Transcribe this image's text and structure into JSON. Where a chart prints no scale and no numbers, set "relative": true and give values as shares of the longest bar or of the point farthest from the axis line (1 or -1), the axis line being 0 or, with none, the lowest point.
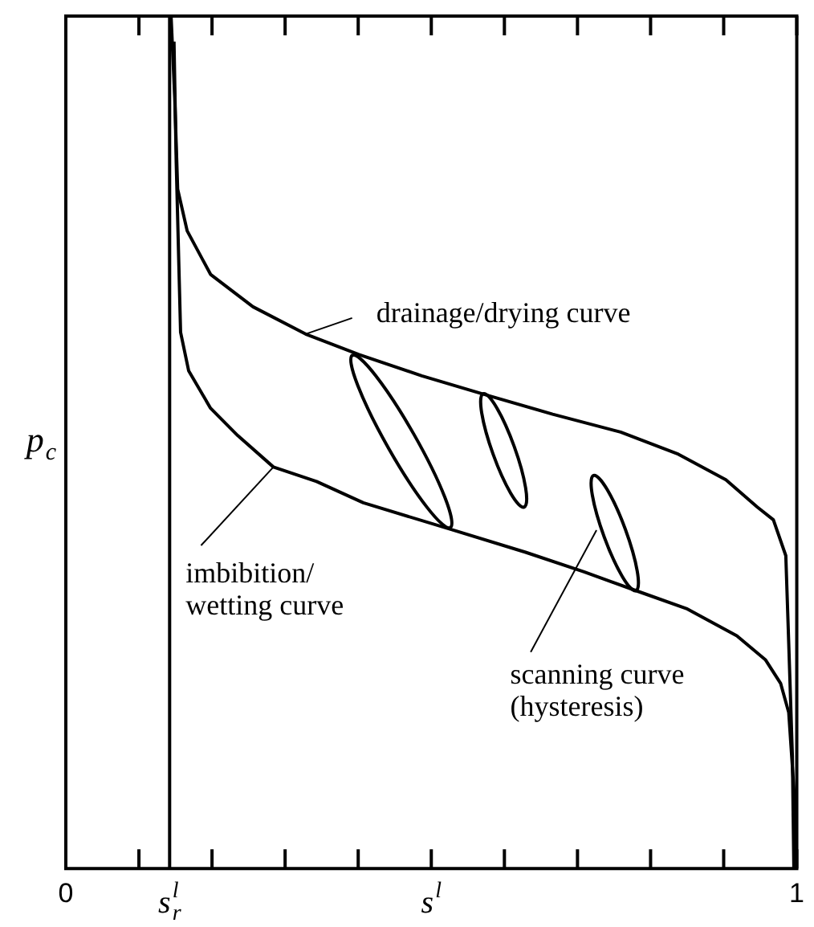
{
  "chart_data": {
    "type": "line",
    "relative": true,
    "marker": "none",
    "xlabel": "s$^{l}$",
    "ylabel": "p$_{c}$",
    "xlim": [
      0,
      1
    ],
    "xticks": [
      0,
      {
        "value": 0.1,
        "label": null
      },
      {
        "value": 0.2,
        "label": null
      },
      {
        "value": 0.3,
        "label": null
      },
      {
        "value": 0.4,
        "label": null
      },
      {
        "value": 0.5,
        "label": null
      },
      {
        "value": 0.6,
        "label": null
      },
      {
        "value": 0.7,
        "label": null
      },
      {
        "value": 0.8,
        "label": null
      },
      {
        "value": 0.9,
        "label": null
      },
      1
    ],
    "ref_lines": [
      {
        "axis": "x",
        "value": 0.142,
        "label": "s$^{l}$$_{r}$",
        "color": "#000000"
      }
    ],
    "series": [
      {
        "color": "#000000",
        "x": [
          0.144,
          0.149,
          0.153,
          0.166,
          0.198,
          0.256,
          0.328,
          0.401,
          0.487,
          0.573,
          0.666,
          0.759,
          0.838,
          0.903,
          0.946,
          0.968,
          0.985,
          0.989,
          0.994,
          0.996
        ],
        "values": [
          1.0,
          0.904,
          0.797,
          0.748,
          0.697,
          0.659,
          0.627,
          0.603,
          0.578,
          0.556,
          0.533,
          0.512,
          0.486,
          0.456,
          0.424,
          0.409,
          0.367,
          0.264,
          0.132,
          0
        ]
      },
      {
        "color": "#000000",
        "x": [
          0.148,
          0.151,
          0.157,
          0.168,
          0.198,
          0.235,
          0.284,
          0.343,
          0.407,
          0.53,
          0.629,
          0.709,
          0.78,
          0.849,
          0.918,
          0.957,
          0.978,
          0.989,
          0.996,
          1.0
        ],
        "values": [
          0.97,
          0.829,
          0.629,
          0.584,
          0.54,
          0.508,
          0.471,
          0.454,
          0.429,
          0.397,
          0.371,
          0.348,
          0.326,
          0.305,
          0.273,
          0.245,
          0.217,
          0.183,
          0.094,
          0
        ]
      }
    ],
    "annotations": [
      {
        "text": "drainage/drying curve",
        "x": 0.328,
        "y": 0.627
      },
      "imbibition/\nwetting curve",
      "scanning curve\n(hysteresis)"
    ]
  }
}
